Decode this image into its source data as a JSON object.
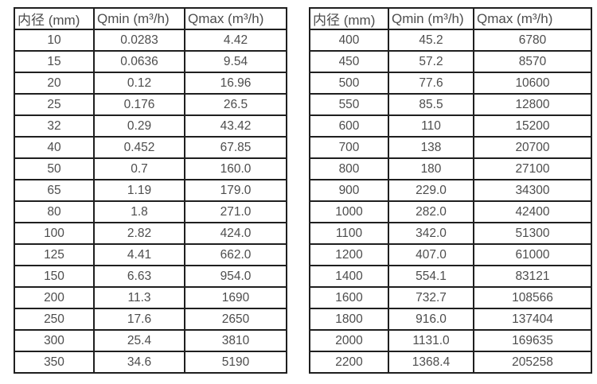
{
  "colors": {
    "background": "#ffffff",
    "border": "#1f1f1f",
    "text": "#4d4d4d"
  },
  "tables": [
    {
      "name": "small-diameters",
      "headers": [
        "内径 (mm)",
        "Qmin (m³/h)",
        "Qmax (m³/h)"
      ],
      "rows": [
        [
          "10",
          "0.0283",
          "4.42"
        ],
        [
          "15",
          "0.0636",
          "9.54"
        ],
        [
          "20",
          "0.12",
          "16.96"
        ],
        [
          "25",
          "0.176",
          "26.5"
        ],
        [
          "32",
          "0.29",
          "43.42"
        ],
        [
          "40",
          "0.452",
          "67.85"
        ],
        [
          "50",
          "0.7",
          "160.0"
        ],
        [
          "65",
          "1.19",
          "179.0"
        ],
        [
          "80",
          "1.8",
          "271.0"
        ],
        [
          "100",
          "2.82",
          "424.0"
        ],
        [
          "125",
          "4.41",
          "662.0"
        ],
        [
          "150",
          "6.63",
          "954.0"
        ],
        [
          "200",
          "11.3",
          "1690"
        ],
        [
          "250",
          "17.6",
          "2650"
        ],
        [
          "300",
          "25.4",
          "3810"
        ],
        [
          "350",
          "34.6",
          "5190"
        ]
      ]
    },
    {
      "name": "large-diameters",
      "headers": [
        "内径 (mm)",
        "Qmin (m³/h)",
        "Qmax (m³/h)"
      ],
      "rows": [
        [
          "400",
          "45.2",
          "6780"
        ],
        [
          "450",
          "57.2",
          "8570"
        ],
        [
          "500",
          "77.6",
          "10600"
        ],
        [
          "550",
          "85.5",
          "12800"
        ],
        [
          "600",
          "110",
          "15200"
        ],
        [
          "700",
          "138",
          "20700"
        ],
        [
          "800",
          "180",
          "27100"
        ],
        [
          "900",
          "229.0",
          "34300"
        ],
        [
          "1000",
          "282.0",
          "42400"
        ],
        [
          "1100",
          "342.0",
          "51300"
        ],
        [
          "1200",
          "407.0",
          "61000"
        ],
        [
          "1400",
          "554.1",
          "83121"
        ],
        [
          "1600",
          "732.7",
          "108566"
        ],
        [
          "1800",
          "916.0",
          "137404"
        ],
        [
          "2000",
          "1131.0",
          "169635"
        ],
        [
          "2200",
          "1368.4",
          "205258"
        ]
      ]
    }
  ]
}
